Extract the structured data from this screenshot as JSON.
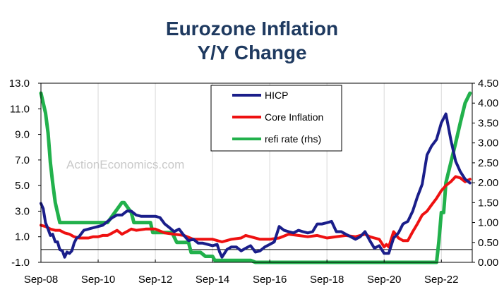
{
  "chart_data": {
    "type": "line",
    "title_line1": "Eurozone Inflation",
    "title_line2": "Y/Y Change",
    "watermark": "ActionEconomics.com",
    "colors": {
      "title": "#1f3a60",
      "hicp": "#1a1e8a",
      "core": "#ee1111",
      "refi": "#22b14c",
      "grid": "#d8d8d8",
      "axis": "#000000"
    },
    "x_range": [
      2008.67,
      2023.75
    ],
    "x_ticks": [
      {
        "label": "Sep-08",
        "x": 2008.67
      },
      {
        "label": "Sep-10",
        "x": 2010.67
      },
      {
        "label": "Sep-12",
        "x": 2012.67
      },
      {
        "label": "Sep-14",
        "x": 2014.67
      },
      {
        "label": "Sep-16",
        "x": 2016.67
      },
      {
        "label": "Sep-18",
        "x": 2018.67
      },
      {
        "label": "Sep-20",
        "x": 2020.67
      },
      {
        "label": "Sep-22",
        "x": 2022.67
      }
    ],
    "y_left": {
      "min": -1.0,
      "max": 13.0,
      "ticks": [
        "13.0",
        "11.0",
        "9.0",
        "7.0",
        "5.0",
        "3.0",
        "1.0",
        "-1.0"
      ]
    },
    "y_right": {
      "min": 0.0,
      "max": 4.5,
      "ticks": [
        "4.50",
        "4.00",
        "3.50",
        "3.00",
        "2.50",
        "2.00",
        "1.50",
        "1.00",
        "0.50",
        "0.00"
      ]
    },
    "zero_line": 0.0,
    "legend": {
      "position": "top-center",
      "items": [
        "HICP",
        "Core Inflation",
        "refi rate (rhs)"
      ]
    },
    "series": [
      {
        "name": "HICP",
        "axis": "left",
        "x": [
          2008.67,
          2008.75,
          2008.83,
          2008.92,
          2009.0,
          2009.08,
          2009.17,
          2009.25,
          2009.33,
          2009.42,
          2009.5,
          2009.58,
          2009.67,
          2009.75,
          2009.83,
          2009.92,
          2010.0,
          2010.17,
          2010.33,
          2010.5,
          2010.67,
          2010.83,
          2011.0,
          2011.17,
          2011.33,
          2011.5,
          2011.67,
          2011.83,
          2012.0,
          2012.17,
          2012.33,
          2012.5,
          2012.67,
          2012.83,
          2013.0,
          2013.17,
          2013.33,
          2013.5,
          2013.67,
          2013.83,
          2014.0,
          2014.17,
          2014.33,
          2014.5,
          2014.67,
          2014.83,
          2014.92,
          2015.0,
          2015.17,
          2015.33,
          2015.5,
          2015.67,
          2015.83,
          2016.0,
          2016.17,
          2016.33,
          2016.5,
          2016.67,
          2016.83,
          2017.0,
          2017.17,
          2017.33,
          2017.5,
          2017.67,
          2017.83,
          2018.0,
          2018.17,
          2018.33,
          2018.5,
          2018.67,
          2018.83,
          2019.0,
          2019.17,
          2019.33,
          2019.5,
          2019.67,
          2019.83,
          2020.0,
          2020.17,
          2020.33,
          2020.5,
          2020.67,
          2020.83,
          2021.0,
          2021.17,
          2021.33,
          2021.5,
          2021.67,
          2021.83,
          2022.0,
          2022.17,
          2022.33,
          2022.5,
          2022.67,
          2022.83,
          2023.0,
          2023.17,
          2023.33,
          2023.5,
          2023.67
        ],
        "values": [
          3.6,
          3.2,
          2.1,
          1.6,
          1.1,
          1.2,
          0.6,
          0.6,
          0.0,
          -0.1,
          -0.6,
          -0.2,
          -0.3,
          -0.1,
          0.5,
          0.9,
          1.0,
          1.5,
          1.6,
          1.7,
          1.8,
          1.9,
          2.2,
          2.5,
          2.7,
          2.7,
          3.0,
          3.0,
          2.7,
          2.6,
          2.6,
          2.6,
          2.6,
          2.5,
          2.0,
          1.7,
          1.4,
          1.6,
          1.1,
          0.7,
          0.8,
          0.5,
          0.5,
          0.4,
          0.3,
          0.4,
          -0.2,
          -0.6,
          0.0,
          0.2,
          0.2,
          -0.1,
          0.1,
          0.3,
          -0.2,
          -0.1,
          0.2,
          0.4,
          0.6,
          1.8,
          1.5,
          1.4,
          1.3,
          1.5,
          1.4,
          1.3,
          1.4,
          2.0,
          2.0,
          2.1,
          2.2,
          1.4,
          1.4,
          1.2,
          1.0,
          0.8,
          1.0,
          1.4,
          0.7,
          0.1,
          0.3,
          -0.3,
          -0.3,
          0.9,
          1.3,
          2.0,
          2.2,
          3.0,
          4.1,
          5.1,
          7.4,
          8.1,
          8.6,
          9.9,
          10.6,
          8.6,
          6.9,
          6.1,
          5.5,
          5.2
        ],
        "linewidth": 4
      },
      {
        "name": "Core Inflation",
        "axis": "left",
        "x": [
          2008.67,
          2008.83,
          2009.0,
          2009.17,
          2009.33,
          2009.5,
          2009.67,
          2009.83,
          2010.0,
          2010.17,
          2010.33,
          2010.5,
          2010.67,
          2010.83,
          2011.0,
          2011.17,
          2011.33,
          2011.5,
          2011.67,
          2011.83,
          2012.0,
          2012.33,
          2012.67,
          2013.0,
          2013.33,
          2013.67,
          2014.0,
          2014.33,
          2014.67,
          2015.0,
          2015.33,
          2015.67,
          2015.83,
          2016.0,
          2016.33,
          2016.67,
          2017.0,
          2017.33,
          2017.67,
          2018.0,
          2018.33,
          2018.67,
          2019.0,
          2019.33,
          2019.67,
          2020.0,
          2020.17,
          2020.33,
          2020.5,
          2020.67,
          2020.75,
          2020.83,
          2021.0,
          2021.17,
          2021.33,
          2021.5,
          2021.67,
          2021.83,
          2022.0,
          2022.17,
          2022.33,
          2022.5,
          2022.67,
          2022.83,
          2023.0,
          2023.17,
          2023.33,
          2023.5,
          2023.67
        ],
        "values": [
          1.9,
          1.8,
          1.6,
          1.5,
          1.5,
          1.3,
          1.2,
          1.0,
          0.9,
          0.9,
          0.9,
          1.0,
          1.0,
          1.1,
          1.1,
          1.3,
          1.5,
          1.2,
          1.4,
          1.6,
          1.5,
          1.6,
          1.6,
          1.3,
          1.2,
          1.1,
          0.8,
          0.8,
          0.8,
          0.6,
          0.8,
          0.9,
          1.1,
          1.0,
          0.8,
          0.8,
          0.9,
          1.2,
          1.1,
          1.0,
          1.1,
          0.9,
          1.0,
          1.1,
          1.0,
          1.2,
          1.0,
          0.9,
          0.8,
          0.2,
          0.4,
          0.2,
          1.4,
          0.9,
          0.7,
          0.7,
          1.4,
          2.0,
          2.7,
          3.0,
          3.5,
          4.0,
          4.6,
          5.0,
          5.3,
          5.7,
          5.6,
          5.3,
          5.5
        ],
        "linewidth": 4
      },
      {
        "name": "refi rate (rhs)",
        "axis": "right",
        "x": [
          2008.67,
          2008.83,
          2008.92,
          2009.0,
          2009.08,
          2009.17,
          2009.25,
          2009.33,
          2009.42,
          2010.0,
          2010.5,
          2011.0,
          2011.25,
          2011.5,
          2011.58,
          2011.83,
          2011.92,
          2012.0,
          2012.5,
          2012.58,
          2013.0,
          2013.25,
          2013.42,
          2013.83,
          2013.92,
          2014.0,
          2014.25,
          2014.42,
          2014.67,
          2014.75,
          2016.0,
          2016.17,
          2018.0,
          2020.0,
          2022.0,
          2022.5,
          2022.58,
          2022.67,
          2022.75,
          2022.83,
          2023.0,
          2023.17,
          2023.33,
          2023.5,
          2023.67
        ],
        "values": [
          4.25,
          3.75,
          3.25,
          2.5,
          2.0,
          1.5,
          1.25,
          1.0,
          1.0,
          1.0,
          1.0,
          1.0,
          1.25,
          1.5,
          1.5,
          1.25,
          1.0,
          1.0,
          1.0,
          0.75,
          0.75,
          0.75,
          0.5,
          0.5,
          0.25,
          0.25,
          0.25,
          0.15,
          0.15,
          0.05,
          0.05,
          0.0,
          0.0,
          0.0,
          0.0,
          0.0,
          0.5,
          1.25,
          1.25,
          2.0,
          2.5,
          3.0,
          3.5,
          4.0,
          4.25
        ],
        "linewidth": 5
      }
    ]
  }
}
